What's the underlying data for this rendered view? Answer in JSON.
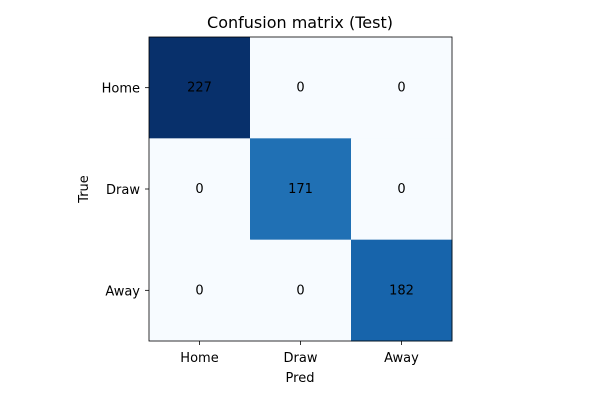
{
  "chart_data": {
    "type": "heatmap",
    "title": "Confusion matrix (Test)",
    "xlabel": "Pred",
    "ylabel": "True",
    "x_categories": [
      "Home",
      "Draw",
      "Away"
    ],
    "y_categories": [
      "Home",
      "Draw",
      "Away"
    ],
    "values": [
      [
        227,
        0,
        0
      ],
      [
        0,
        171,
        0
      ],
      [
        0,
        0,
        182
      ]
    ],
    "colormap": "Blues",
    "value_range": [
      0,
      227
    ],
    "grid": false,
    "legend": "none"
  }
}
